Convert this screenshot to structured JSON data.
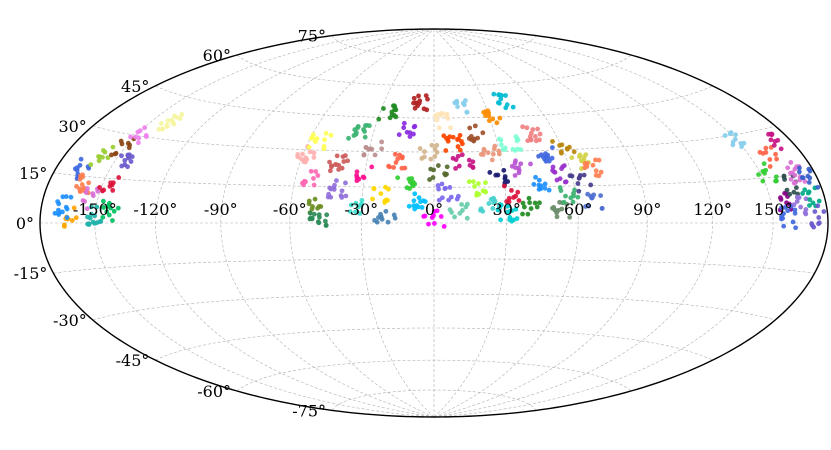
{
  "map": {
    "projection": "hammer-aitoff",
    "coordinate_frame": "longitude/latitude (degrees)",
    "longitude_tick_labels": [
      "-150°",
      "-120°",
      "-90°",
      "-60°",
      "-30°",
      "0°",
      "30°",
      "60°",
      "90°",
      "120°",
      "150°"
    ],
    "longitude_tick_values": [
      -150,
      -120,
      -90,
      -60,
      -30,
      0,
      30,
      60,
      90,
      120,
      150
    ],
    "latitude_tick_labels": [
      "-75°",
      "-60°",
      "-45°",
      "-30°",
      "-15°",
      "0°",
      "15°",
      "30°",
      "45°",
      "60°",
      "75°"
    ],
    "latitude_tick_values": [
      -75,
      -60,
      -45,
      -30,
      -15,
      0,
      15,
      30,
      45,
      60,
      75
    ],
    "grid": true,
    "grid_color": "#b0b0b0",
    "boundary_color": "#000000",
    "point_clusters": [
      {
        "lon": -165,
        "lat": 17,
        "color": "#4169e1"
      },
      {
        "lon": -160,
        "lat": 12,
        "color": "#ff7f50"
      },
      {
        "lon": -158,
        "lat": 22,
        "color": "#9acd32"
      },
      {
        "lon": -155,
        "lat": 8,
        "color": "#da70d6"
      },
      {
        "lon": -152,
        "lat": 26,
        "color": "#8b4513"
      },
      {
        "lon": -150,
        "lat": 3,
        "color": "#20b2aa"
      },
      {
        "lon": -147,
        "lat": 14,
        "color": "#dc143c"
      },
      {
        "lon": -145,
        "lat": 20,
        "color": "#6a5acd"
      },
      {
        "lon": -143,
        "lat": 4,
        "color": "#00c060"
      },
      {
        "lon": -148,
        "lat": 30,
        "color": "#ee82ee"
      },
      {
        "lon": -162,
        "lat": 2,
        "color": "#ffa500"
      },
      {
        "lon": -168,
        "lat": 5,
        "color": "#1e90ff"
      },
      {
        "lon": -140,
        "lat": 36,
        "color": "#f5f5a0"
      },
      {
        "lon": -58,
        "lat": 28,
        "color": "#ffb0b0"
      },
      {
        "lon": -55,
        "lat": 34,
        "color": "#ffff55"
      },
      {
        "lon": -52,
        "lat": 18,
        "color": "#ff69b4"
      },
      {
        "lon": -50,
        "lat": 7,
        "color": "#6b8e23"
      },
      {
        "lon": -47,
        "lat": 2,
        "color": "#2e8b57"
      },
      {
        "lon": -43,
        "lat": 25,
        "color": "#cd5c5c"
      },
      {
        "lon": -40,
        "lat": 14,
        "color": "#9370db"
      },
      {
        "lon": -37,
        "lat": 38,
        "color": "#3cb371"
      },
      {
        "lon": -33,
        "lat": 6,
        "color": "#40e0d0"
      },
      {
        "lon": -30,
        "lat": 20,
        "color": "#ff1493"
      },
      {
        "lon": -28,
        "lat": 31,
        "color": "#bc8f8f"
      },
      {
        "lon": -25,
        "lat": 47,
        "color": "#228b22"
      },
      {
        "lon": -22,
        "lat": 12,
        "color": "#ffd700"
      },
      {
        "lon": -20,
        "lat": 3,
        "color": "#4682b4"
      },
      {
        "lon": -17,
        "lat": 26,
        "color": "#ff6347"
      },
      {
        "lon": -14,
        "lat": 40,
        "color": "#8a2be2"
      },
      {
        "lon": -12,
        "lat": 17,
        "color": "#32cd32"
      },
      {
        "lon": -8,
        "lat": 52,
        "color": "#b22222"
      },
      {
        "lon": -6,
        "lat": 9,
        "color": "#00bfff"
      },
      {
        "lon": -3,
        "lat": 30,
        "color": "#d2b48c"
      },
      {
        "lon": 0,
        "lat": 2,
        "color": "#ff00ff"
      },
      {
        "lon": 2,
        "lat": 21,
        "color": "#556b2f"
      },
      {
        "lon": 4,
        "lat": 44,
        "color": "#ffe4b5"
      },
      {
        "lon": 6,
        "lat": 13,
        "color": "#7b68ee"
      },
      {
        "lon": 9,
        "lat": 34,
        "color": "#ff4500"
      },
      {
        "lon": 11,
        "lat": 5,
        "color": "#66cdaa"
      },
      {
        "lon": 13,
        "lat": 26,
        "color": "#c71585"
      },
      {
        "lon": 16,
        "lat": 50,
        "color": "#87ceeb"
      },
      {
        "lon": 18,
        "lat": 15,
        "color": "#adff2f"
      },
      {
        "lon": 21,
        "lat": 38,
        "color": "#a0522d"
      },
      {
        "lon": 23,
        "lat": 8,
        "color": "#48d1cc"
      },
      {
        "lon": 26,
        "lat": 29,
        "color": "#e9967a"
      },
      {
        "lon": 28,
        "lat": 19,
        "color": "#191970"
      },
      {
        "lon": 30,
        "lat": 4,
        "color": "#00ced1"
      },
      {
        "lon": 32,
        "lat": 45,
        "color": "#ff8c00"
      },
      {
        "lon": 34,
        "lat": 12,
        "color": "#dc143c"
      },
      {
        "lon": 36,
        "lat": 33,
        "color": "#7fffd4"
      },
      {
        "lon": 39,
        "lat": 23,
        "color": "#ba55d3"
      },
      {
        "lon": 41,
        "lat": 7,
        "color": "#228b22"
      },
      {
        "lon": 43,
        "lat": 52,
        "color": "#00bcd4"
      },
      {
        "lon": 46,
        "lat": 16,
        "color": "#1e90ff"
      },
      {
        "lon": 48,
        "lat": 37,
        "color": "#f08080"
      },
      {
        "lon": 51,
        "lat": 28,
        "color": "#4169e1"
      },
      {
        "lon": 53,
        "lat": 5,
        "color": "#6b8e6b"
      },
      {
        "lon": 56,
        "lat": 20,
        "color": "#9932cc"
      },
      {
        "lon": 58,
        "lat": 11,
        "color": "#3cb371"
      },
      {
        "lon": 61,
        "lat": 32,
        "color": "#b8860b"
      },
      {
        "lon": 63,
        "lat": 16,
        "color": "#483d8b"
      },
      {
        "lon": 66,
        "lat": 25,
        "color": "#d3d34a"
      },
      {
        "lon": 68,
        "lat": 9,
        "color": "#4f6fd0"
      },
      {
        "lon": 71,
        "lat": 22,
        "color": "#ff7f50"
      },
      {
        "lon": 150,
        "lat": 28,
        "color": "#87ceeb"
      },
      {
        "lon": 153,
        "lat": 17,
        "color": "#32cd32"
      },
      {
        "lon": 156,
        "lat": 7,
        "color": "#8b008b"
      },
      {
        "lon": 158,
        "lat": 2,
        "color": "#4169e1"
      },
      {
        "lon": 161,
        "lat": 22,
        "color": "#ff6347"
      },
      {
        "lon": 164,
        "lat": 12,
        "color": "#2f4f4f"
      },
      {
        "lon": 166,
        "lat": 5,
        "color": "#9370db"
      },
      {
        "lon": 169,
        "lat": 16,
        "color": "#da70d6"
      },
      {
        "lon": 172,
        "lat": 8,
        "color": "#00aa88"
      },
      {
        "lon": 175,
        "lat": 2,
        "color": "#6a5acd"
      },
      {
        "lon": 170,
        "lat": 26,
        "color": "#c71585"
      },
      {
        "lon": 176,
        "lat": 14,
        "color": "#3a5fcd"
      }
    ]
  }
}
